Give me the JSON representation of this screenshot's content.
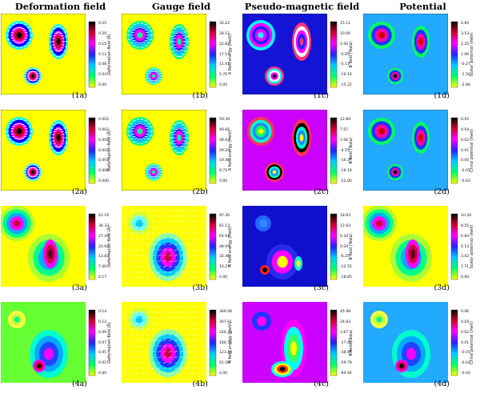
{
  "columns": [
    {
      "title": "Deformation field"
    },
    {
      "title": "Gauge field"
    },
    {
      "title": "Pseudo-magnetic field"
    },
    {
      "title": "Potential"
    }
  ],
  "panels": [
    {
      "id": "1a",
      "tag": "(1a)",
      "cbar_label": "Deformation field (Å)",
      "ticks": [
        "0.25",
        "0.20",
        "0.15",
        "0.12",
        "0.08",
        "0.04",
        "0.00"
      ],
      "bg": "#ffff00",
      "style": "def"
    },
    {
      "id": "1b",
      "tag": "(1b)",
      "cbar_label": "A field energy (meV)",
      "ticks": [
        "34.22",
        "28.52",
        "22.82",
        "17.11",
        "11.41",
        "5.70",
        "0.00"
      ],
      "bg": "#ffff00",
      "style": "gauge"
    },
    {
      "id": "1c",
      "tag": "(1c)",
      "cbar_label": "B field (Tesla)",
      "ticks": [
        "15.11",
        "10.06",
        "5.00",
        "-0.05",
        "-5.11",
        "-10.16",
        "-15.22"
      ],
      "bg": "#1414d6",
      "style": "pmf"
    },
    {
      "id": "1d",
      "tag": "(1d)",
      "cbar_label": "Scalar potential (meV)",
      "ticks": [
        "4.60",
        "3.53",
        "2.25",
        "1.00",
        "-0.27",
        "-1.56",
        "-2.86"
      ],
      "bg": "#22aaff",
      "style": "pot"
    },
    {
      "id": "2a",
      "tag": "(2a)",
      "cbar_label": "Deformation field (Å)",
      "ticks": [
        "0.002",
        "0.002",
        "0.001",
        "0.001",
        "0.001",
        "0.000",
        "0.000"
      ],
      "bg": "#ffff00",
      "style": "def"
    },
    {
      "id": "2b",
      "tag": "(2b)",
      "cbar_label": "A field energy (meV)",
      "ticks": [
        "59.39",
        "49.66",
        "39.93",
        "29.20",
        "19.46",
        "9.73",
        "0.00"
      ],
      "bg": "#ffff00",
      "style": "gauge"
    },
    {
      "id": "2c",
      "tag": "(2c)",
      "cbar_label": "B field (Tesla)",
      "ticks": [
        "12.89",
        "7.07",
        "1.06",
        "-4.55",
        "-10.37",
        "-16.19",
        "-22.00"
      ],
      "bg": "#cc00ff",
      "style": "pmf2"
    },
    {
      "id": "2d",
      "tag": "(2d)",
      "cbar_label": "Chiral potential (meV)",
      "ticks": [
        "0.05",
        "0.04",
        "0.02",
        "0.01",
        "0.00",
        "-0.01",
        "-0.03"
      ],
      "bg": "#22aaff",
      "style": "pot"
    },
    {
      "id": "3a",
      "tag": "(3a)",
      "cbar_label": "Deformation field (Å)",
      "ticks": [
        "41.16",
        "34.33",
        "27.49",
        "20.66",
        "13.83",
        "7.00",
        "0.17"
      ],
      "bg": "#ffff00",
      "style": "smooth"
    },
    {
      "id": "3b",
      "tag": "(3b)",
      "cbar_label": "A field energy (meV)",
      "ticks": [
        "97.30",
        "81.13",
        "64.91",
        "48.69",
        "32.46",
        "16.23",
        "0.00"
      ],
      "bg": "#ffff00",
      "style": "gaugesmooth"
    },
    {
      "id": "3c",
      "tag": "(3c)",
      "cbar_label": "B field (Tesla)",
      "ticks": [
        "18.93",
        "12.64",
        "6.34",
        "0.04",
        "-6.25",
        "-12.55",
        "-18.85"
      ],
      "bg": "#1414d6",
      "style": "pmf3"
    },
    {
      "id": "3d",
      "tag": "(3d)",
      "cbar_label": "Scalar potential (meV)",
      "ticks": [
        "10.26",
        "8.55",
        "6.84",
        "5.13",
        "3.42",
        "1.71",
        "0.00"
      ],
      "bg": "#ffff00",
      "style": "smooth"
    },
    {
      "id": "4a",
      "tag": "(4a)",
      "cbar_label": "Deformation field (Å)",
      "ticks": [
        "0.14",
        "0.12",
        "0.09",
        "0.07",
        "0.05",
        "0.02",
        "0.00"
      ],
      "bg": "#66ff33",
      "style": "smooth4"
    },
    {
      "id": "4b",
      "tag": "(4b)",
      "cbar_label": "A field energy (meV)",
      "ticks": [
        "369.46",
        "307.91",
        "246.33",
        "184.75",
        "123.16",
        "61.58",
        "0.00"
      ],
      "bg": "#ffff00",
      "style": "gaugesmooth"
    },
    {
      "id": "4c",
      "tag": "(4c)",
      "cbar_label": "B field (Tesla)",
      "ticks": [
        "45.98",
        "24.83",
        "3.67",
        "-17.48",
        "-38.64",
        "-59.79",
        "-80.94"
      ],
      "bg": "#cc00ff",
      "style": "pmf4"
    },
    {
      "id": "4d",
      "tag": "(4d)",
      "cbar_label": "Chiral potential (meV)",
      "ticks": [
        "0.06",
        "0.04",
        "0.02",
        "0.01",
        "-0.01",
        "-0.02",
        "-0.04"
      ],
      "bg": "#22aaff",
      "style": "smooth4"
    }
  ]
}
